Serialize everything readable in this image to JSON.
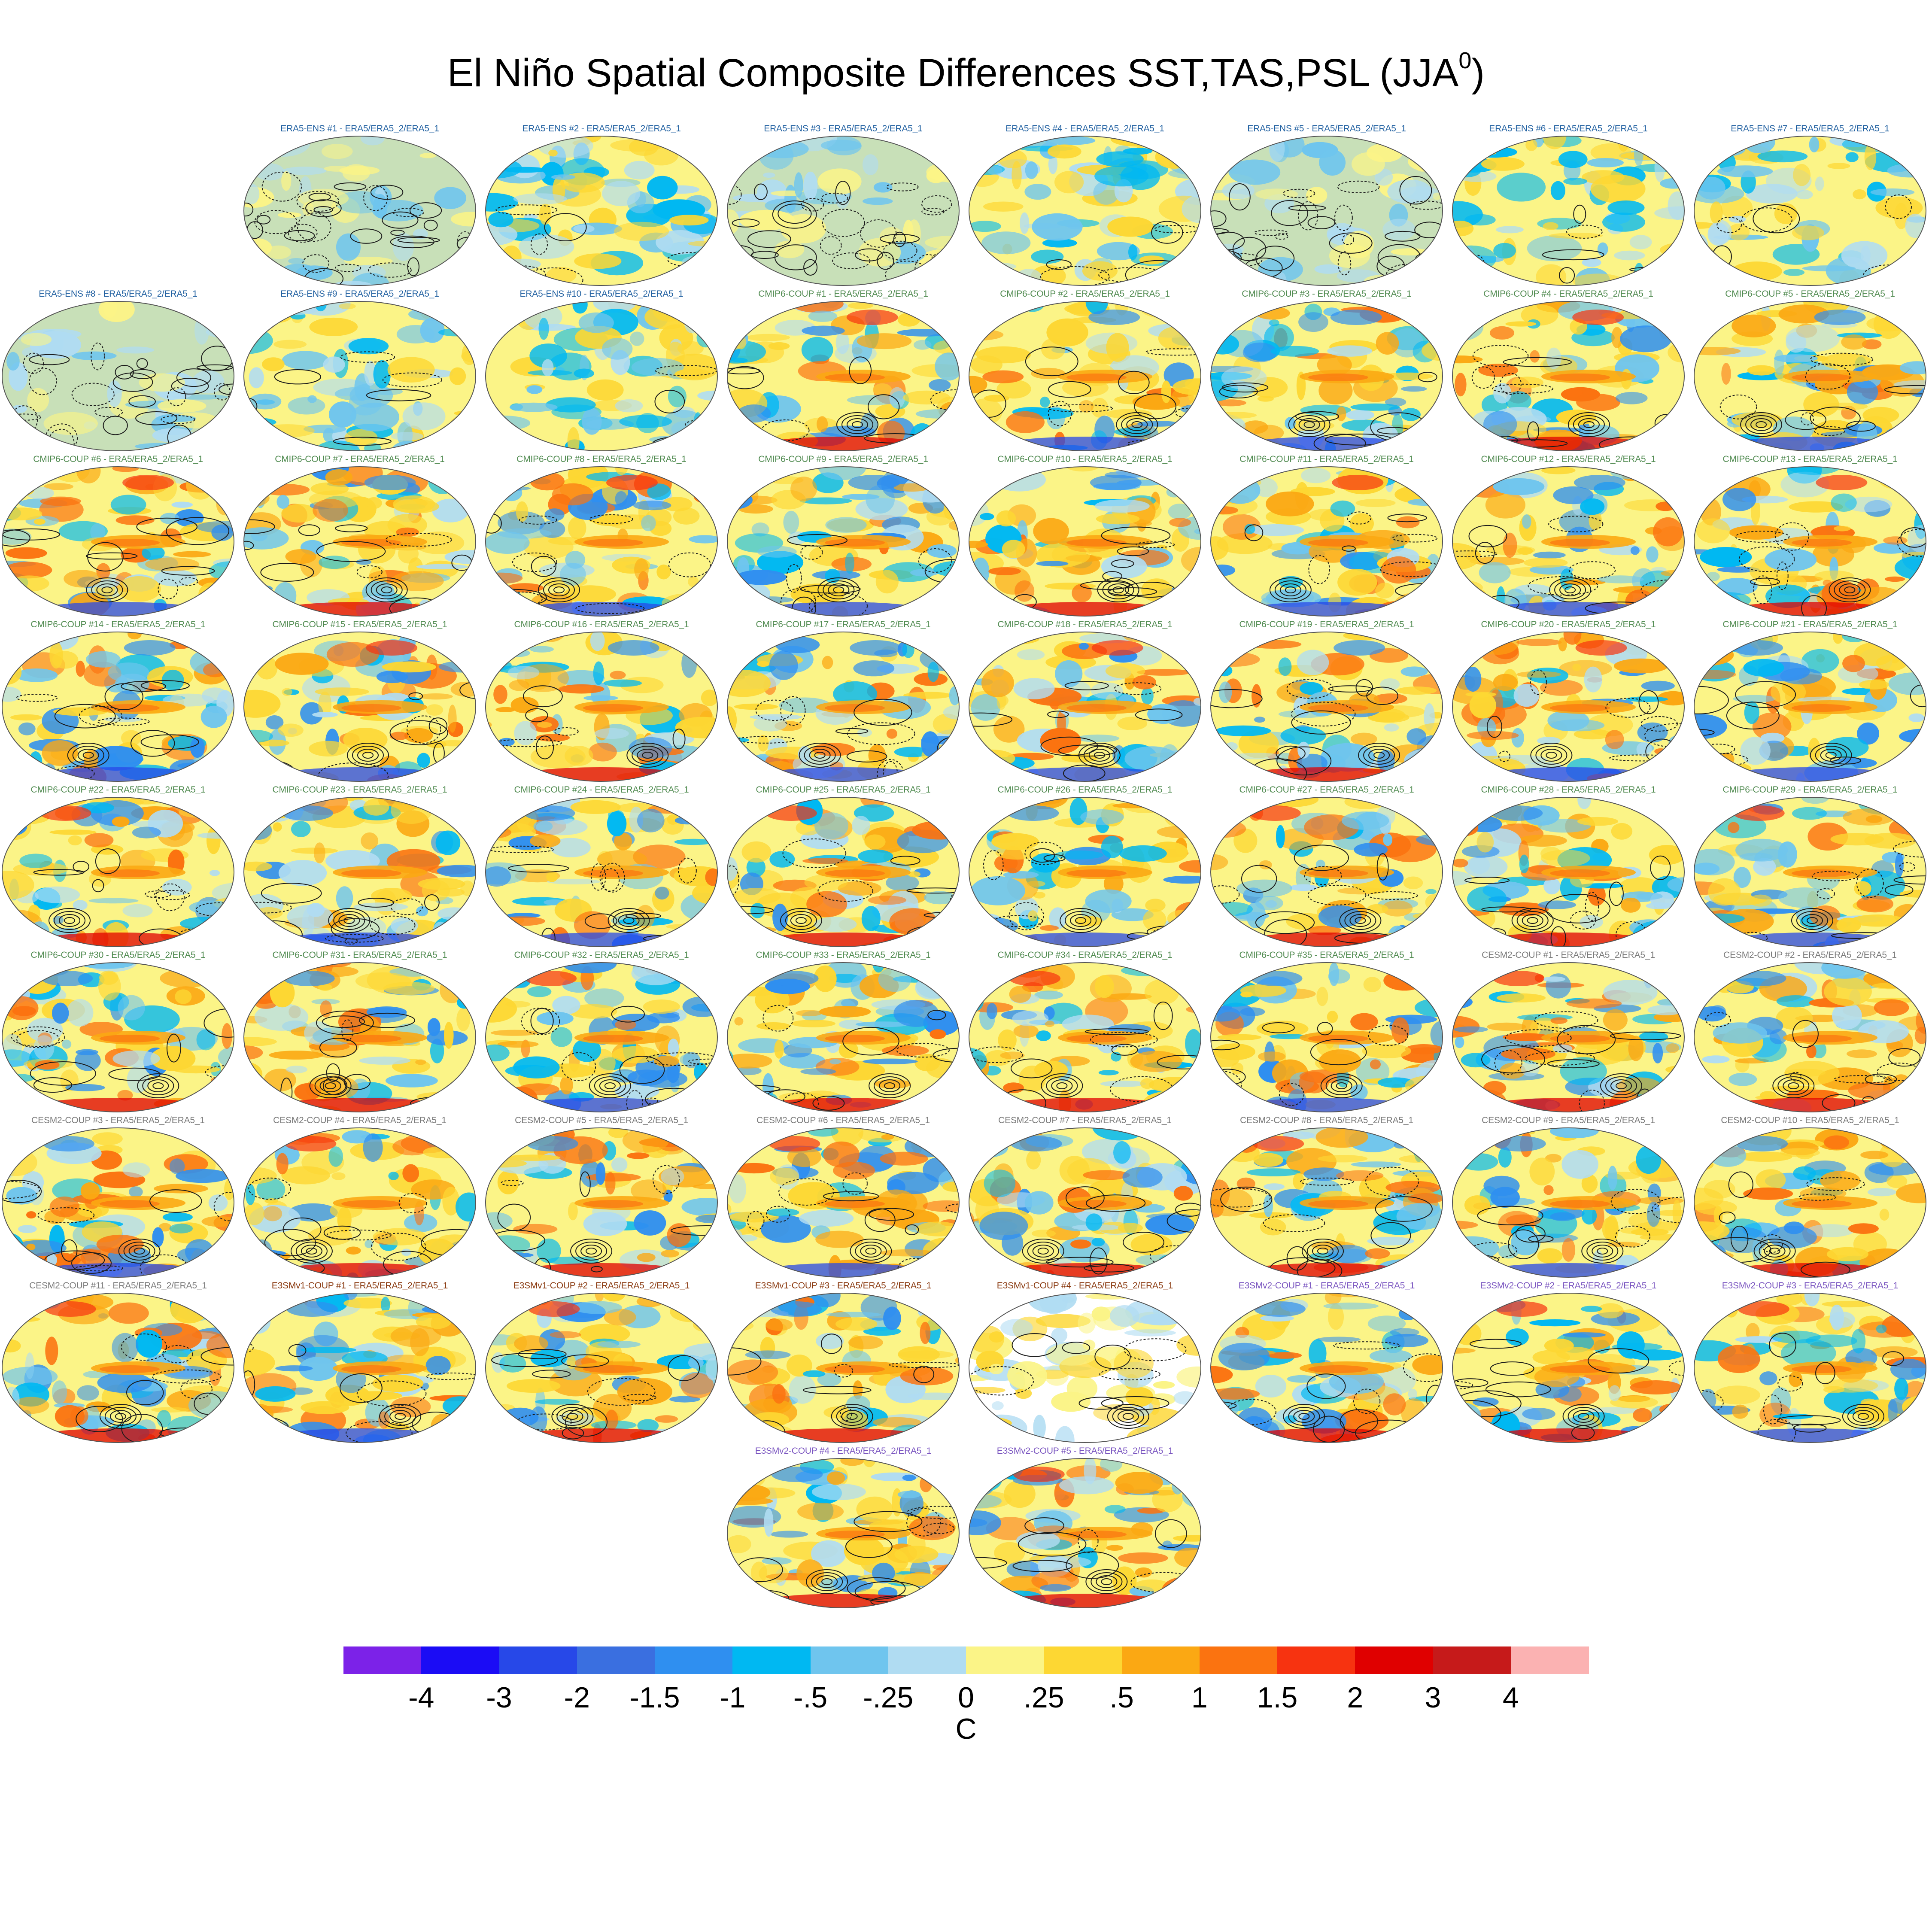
{
  "title": {
    "main": "El Niño Spatial Composite Differences SST,TAS,PSL (JJA",
    "sup": "0",
    "close": ")"
  },
  "chart_data": {
    "type": "heatmap",
    "description_units": "C",
    "title": "El Niño Spatial Composite Differences SST,TAS,PSL (JJA0)",
    "colorbar": {
      "ticks": [
        "-4",
        "-3",
        "-2",
        "-1.5",
        "-1",
        "-.5",
        "-.25",
        "0",
        ".25",
        ".5",
        "1",
        "1.5",
        "2",
        "3",
        "4"
      ],
      "colors": [
        "#7c22e8",
        "#1b0cf5",
        "#2748e8",
        "#3a6fe0",
        "#2f8ff0",
        "#00b8f2",
        "#6fc5ee",
        "#b0dcf2",
        "#fbf487",
        "#fdd733",
        "#fba813",
        "#fb7310",
        "#f73310",
        "#e00000",
        "#c61a1a",
        "#fbb2b2"
      ],
      "unit": "C"
    },
    "panels": [
      {
        "label": "ERA5-ENS    #1 - ERA5/ERA5_2/ERA5_1",
        "color": "#1f5fa0",
        "style": "obs"
      },
      {
        "label": "ERA5-ENS    #2 - ERA5/ERA5_2/ERA5_1",
        "color": "#1f5fa0",
        "style": "obs2"
      },
      {
        "label": "ERA5-ENS    #3 - ERA5/ERA5_2/ERA5_1",
        "color": "#1f5fa0",
        "style": "obs"
      },
      {
        "label": "ERA5-ENS    #4 - ERA5/ERA5_2/ERA5_1",
        "color": "#1f5fa0",
        "style": "obs2"
      },
      {
        "label": "ERA5-ENS    #5 - ERA5/ERA5_2/ERA5_1",
        "color": "#1f5fa0",
        "style": "obs"
      },
      {
        "label": "ERA5-ENS    #6 - ERA5/ERA5_2/ERA5_1",
        "color": "#1f5fa0",
        "style": "obs2"
      },
      {
        "label": "ERA5-ENS    #7 - ERA5/ERA5_2/ERA5_1",
        "color": "#1f5fa0",
        "style": "obs2"
      },
      {
        "label": "ERA5-ENS    #8 - ERA5/ERA5_2/ERA5_1",
        "color": "#1f5fa0",
        "style": "obs"
      },
      {
        "label": "ERA5-ENS    #9 - ERA5/ERA5_2/ERA5_1",
        "color": "#1f5fa0",
        "style": "obs2"
      },
      {
        "label": "ERA5-ENS    #10 - ERA5/ERA5_2/ERA5_1",
        "color": "#1f5fa0",
        "style": "obs2"
      },
      {
        "label": "CMIP6-COUP  #1 - ERA5/ERA5_2/ERA5_1",
        "color": "#4f8a4f",
        "style": "model"
      },
      {
        "label": "CMIP6-COUP  #2 - ERA5/ERA5_2/ERA5_1",
        "color": "#4f8a4f",
        "style": "model"
      },
      {
        "label": "CMIP6-COUP  #3 - ERA5/ERA5_2/ERA5_1",
        "color": "#4f8a4f",
        "style": "model"
      },
      {
        "label": "CMIP6-COUP  #4 - ERA5/ERA5_2/ERA5_1",
        "color": "#4f8a4f",
        "style": "model"
      },
      {
        "label": "CMIP6-COUP  #5 - ERA5/ERA5_2/ERA5_1",
        "color": "#4f8a4f",
        "style": "model"
      },
      {
        "label": "CMIP6-COUP  #6 - ERA5/ERA5_2/ERA5_1",
        "color": "#4f8a4f",
        "style": "model"
      },
      {
        "label": "CMIP6-COUP  #7 - ERA5/ERA5_2/ERA5_1",
        "color": "#4f8a4f",
        "style": "model"
      },
      {
        "label": "CMIP6-COUP  #8 - ERA5/ERA5_2/ERA5_1",
        "color": "#4f8a4f",
        "style": "model"
      },
      {
        "label": "CMIP6-COUP  #9 - ERA5/ERA5_2/ERA5_1",
        "color": "#4f8a4f",
        "style": "model"
      },
      {
        "label": "CMIP6-COUP  #10 - ERA5/ERA5_2/ERA5_1",
        "color": "#4f8a4f",
        "style": "model"
      },
      {
        "label": "CMIP6-COUP  #11 - ERA5/ERA5_2/ERA5_1",
        "color": "#4f8a4f",
        "style": "model"
      },
      {
        "label": "CMIP6-COUP  #12 - ERA5/ERA5_2/ERA5_1",
        "color": "#4f8a4f",
        "style": "model"
      },
      {
        "label": "CMIP6-COUP  #13 - ERA5/ERA5_2/ERA5_1",
        "color": "#4f8a4f",
        "style": "model"
      },
      {
        "label": "CMIP6-COUP  #14 - ERA5/ERA5_2/ERA5_1",
        "color": "#4f8a4f",
        "style": "model"
      },
      {
        "label": "CMIP6-COUP  #15 - ERA5/ERA5_2/ERA5_1",
        "color": "#4f8a4f",
        "style": "model"
      },
      {
        "label": "CMIP6-COUP  #16 - ERA5/ERA5_2/ERA5_1",
        "color": "#4f8a4f",
        "style": "model"
      },
      {
        "label": "CMIP6-COUP  #17 - ERA5/ERA5_2/ERA5_1",
        "color": "#4f8a4f",
        "style": "model"
      },
      {
        "label": "CMIP6-COUP  #18 - ERA5/ERA5_2/ERA5_1",
        "color": "#4f8a4f",
        "style": "model"
      },
      {
        "label": "CMIP6-COUP  #19 - ERA5/ERA5_2/ERA5_1",
        "color": "#4f8a4f",
        "style": "model"
      },
      {
        "label": "CMIP6-COUP  #20 - ERA5/ERA5_2/ERA5_1",
        "color": "#4f8a4f",
        "style": "model"
      },
      {
        "label": "CMIP6-COUP  #21 - ERA5/ERA5_2/ERA5_1",
        "color": "#4f8a4f",
        "style": "model"
      },
      {
        "label": "CMIP6-COUP  #22 - ERA5/ERA5_2/ERA5_1",
        "color": "#4f8a4f",
        "style": "model"
      },
      {
        "label": "CMIP6-COUP  #23 - ERA5/ERA5_2/ERA5_1",
        "color": "#4f8a4f",
        "style": "model"
      },
      {
        "label": "CMIP6-COUP  #24 - ERA5/ERA5_2/ERA5_1",
        "color": "#4f8a4f",
        "style": "model"
      },
      {
        "label": "CMIP6-COUP  #25 - ERA5/ERA5_2/ERA5_1",
        "color": "#4f8a4f",
        "style": "model"
      },
      {
        "label": "CMIP6-COUP  #26 - ERA5/ERA5_2/ERA5_1",
        "color": "#4f8a4f",
        "style": "model"
      },
      {
        "label": "CMIP6-COUP  #27 - ERA5/ERA5_2/ERA5_1",
        "color": "#4f8a4f",
        "style": "model"
      },
      {
        "label": "CMIP6-COUP  #28 - ERA5/ERA5_2/ERA5_1",
        "color": "#4f8a4f",
        "style": "model"
      },
      {
        "label": "CMIP6-COUP  #29 - ERA5/ERA5_2/ERA5_1",
        "color": "#4f8a4f",
        "style": "model"
      },
      {
        "label": "CMIP6-COUP  #30 - ERA5/ERA5_2/ERA5_1",
        "color": "#4f8a4f",
        "style": "model"
      },
      {
        "label": "CMIP6-COUP  #31 - ERA5/ERA5_2/ERA5_1",
        "color": "#4f8a4f",
        "style": "model"
      },
      {
        "label": "CMIP6-COUP  #32 - ERA5/ERA5_2/ERA5_1",
        "color": "#4f8a4f",
        "style": "model"
      },
      {
        "label": "CMIP6-COUP  #33 - ERA5/ERA5_2/ERA5_1",
        "color": "#4f8a4f",
        "style": "model"
      },
      {
        "label": "CMIP6-COUP  #34 - ERA5/ERA5_2/ERA5_1",
        "color": "#4f8a4f",
        "style": "model"
      },
      {
        "label": "CMIP6-COUP  #35 - ERA5/ERA5_2/ERA5_1",
        "color": "#4f8a4f",
        "style": "model"
      },
      {
        "label": "CESM2-COUP  #1 - ERA5/ERA5_2/ERA5_1",
        "color": "#7a7a7a",
        "style": "model"
      },
      {
        "label": "CESM2-COUP  #2 - ERA5/ERA5_2/ERA5_1",
        "color": "#7a7a7a",
        "style": "model"
      },
      {
        "label": "CESM2-COUP  #3 - ERA5/ERA5_2/ERA5_1",
        "color": "#7a7a7a",
        "style": "model"
      },
      {
        "label": "CESM2-COUP  #4 - ERA5/ERA5_2/ERA5_1",
        "color": "#7a7a7a",
        "style": "model"
      },
      {
        "label": "CESM2-COUP  #5 - ERA5/ERA5_2/ERA5_1",
        "color": "#7a7a7a",
        "style": "model"
      },
      {
        "label": "CESM2-COUP  #6 - ERA5/ERA5_2/ERA5_1",
        "color": "#7a7a7a",
        "style": "model"
      },
      {
        "label": "CESM2-COUP  #7 - ERA5/ERA5_2/ERA5_1",
        "color": "#7a7a7a",
        "style": "model"
      },
      {
        "label": "CESM2-COUP  #8 - ERA5/ERA5_2/ERA5_1",
        "color": "#7a7a7a",
        "style": "model"
      },
      {
        "label": "CESM2-COUP  #9 - ERA5/ERA5_2/ERA5_1",
        "color": "#7a7a7a",
        "style": "model"
      },
      {
        "label": "CESM2-COUP  #10 - ERA5/ERA5_2/ERA5_1",
        "color": "#7a7a7a",
        "style": "model"
      },
      {
        "label": "CESM2-COUP  #11 - ERA5/ERA5_2/ERA5_1",
        "color": "#7a7a7a",
        "style": "model"
      },
      {
        "label": "E3SMv1-COUP #1 - ERA5/ERA5_2/ERA5_1",
        "color": "#8a3a10",
        "style": "model"
      },
      {
        "label": "E3SMv1-COUP #2 - ERA5/ERA5_2/ERA5_1",
        "color": "#8a3a10",
        "style": "model"
      },
      {
        "label": "E3SMv1-COUP #3 - ERA5/ERA5_2/ERA5_1",
        "color": "#8a3a10",
        "style": "model"
      },
      {
        "label": "E3SMv1-COUP #4 - ERA5/ERA5_2/ERA5_1",
        "color": "#8a3a10",
        "style": "sparse"
      },
      {
        "label": "E3SMv2-COUP #1 - ERA5/ERA5_2/ERA5_1",
        "color": "#7a55c0",
        "style": "model"
      },
      {
        "label": "E3SMv2-COUP #2 - ERA5/ERA5_2/ERA5_1",
        "color": "#7a55c0",
        "style": "model"
      },
      {
        "label": "E3SMv2-COUP #3 - ERA5/ERA5_2/ERA5_1",
        "color": "#7a55c0",
        "style": "model"
      },
      {
        "label": "E3SMv2-COUP #4 - ERA5/ERA5_2/ERA5_1",
        "color": "#7a55c0",
        "style": "model"
      },
      {
        "label": "E3SMv2-COUP #5 - ERA5/ERA5_2/ERA5_1",
        "color": "#7a55c0",
        "style": "model"
      }
    ]
  }
}
